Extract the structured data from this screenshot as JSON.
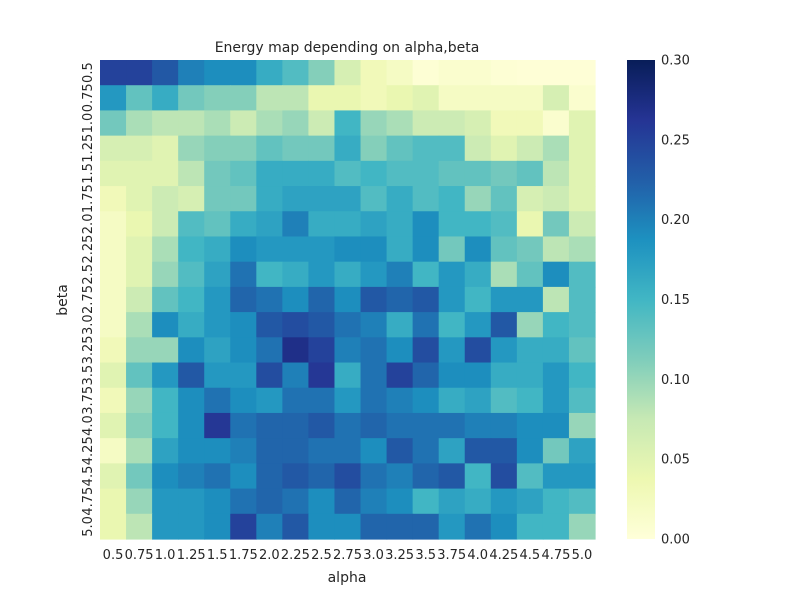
{
  "chart_data": {
    "type": "heatmap",
    "title": "Energy map depending on alpha,beta",
    "xlabel": "alpha",
    "ylabel": "beta",
    "x_tick_labels": [
      "0.5",
      "0.75",
      "1.0",
      "1.25",
      "1.5",
      "1.75",
      "2.0",
      "2.25",
      "2.5",
      "2.75",
      "3.0",
      "3.25",
      "3.5",
      "3.75",
      "4.0",
      "4.25",
      "4.5",
      "4.75",
      "5.0"
    ],
    "y_tick_labels": [
      "0.5",
      "0.75",
      "1.0",
      "1.25",
      "1.5",
      "1.75",
      "2.0",
      "2.25",
      "2.5",
      "2.75",
      "3.0",
      "3.25",
      "3.5",
      "3.75",
      "4.0",
      "4.25",
      "4.5",
      "4.75",
      "5.0"
    ],
    "colorbar": {
      "min": 0.0,
      "max": 0.3,
      "ticks": [
        "0.00",
        "0.05",
        "0.10",
        "0.15",
        "0.20",
        "0.25",
        "0.30"
      ],
      "colormap": "YlGnBu"
    },
    "values": [
      [
        0.25,
        0.25,
        0.23,
        0.2,
        0.19,
        0.19,
        0.16,
        0.14,
        0.11,
        0.06,
        0.03,
        0.02,
        0.005,
        0.01,
        0.01,
        0.005,
        0.003,
        0.003,
        0.003
      ],
      [
        0.18,
        0.13,
        0.16,
        0.12,
        0.11,
        0.11,
        0.08,
        0.08,
        0.04,
        0.04,
        0.03,
        0.04,
        0.05,
        0.02,
        0.02,
        0.02,
        0.02,
        0.06,
        0.01
      ],
      [
        0.12,
        0.09,
        0.08,
        0.08,
        0.09,
        0.07,
        0.09,
        0.1,
        0.07,
        0.15,
        0.1,
        0.09,
        0.07,
        0.07,
        0.06,
        0.03,
        0.03,
        0.01,
        0.05
      ],
      [
        0.06,
        0.06,
        0.05,
        0.1,
        0.11,
        0.11,
        0.13,
        0.12,
        0.12,
        0.16,
        0.11,
        0.13,
        0.14,
        0.14,
        0.07,
        0.05,
        0.07,
        0.09,
        0.05
      ],
      [
        0.05,
        0.05,
        0.05,
        0.08,
        0.12,
        0.13,
        0.16,
        0.16,
        0.16,
        0.14,
        0.15,
        0.14,
        0.14,
        0.13,
        0.13,
        0.12,
        0.13,
        0.08,
        0.05
      ],
      [
        0.03,
        0.05,
        0.07,
        0.06,
        0.12,
        0.12,
        0.16,
        0.17,
        0.17,
        0.17,
        0.14,
        0.16,
        0.14,
        0.15,
        0.1,
        0.13,
        0.06,
        0.07,
        0.05
      ],
      [
        0.02,
        0.04,
        0.07,
        0.14,
        0.13,
        0.16,
        0.17,
        0.2,
        0.16,
        0.16,
        0.17,
        0.16,
        0.19,
        0.15,
        0.15,
        0.14,
        0.04,
        0.12,
        0.07
      ],
      [
        0.02,
        0.05,
        0.09,
        0.15,
        0.16,
        0.19,
        0.18,
        0.18,
        0.18,
        0.19,
        0.19,
        0.16,
        0.19,
        0.12,
        0.19,
        0.13,
        0.12,
        0.08,
        0.09
      ],
      [
        0.02,
        0.05,
        0.1,
        0.14,
        0.17,
        0.21,
        0.15,
        0.16,
        0.18,
        0.16,
        0.18,
        0.2,
        0.15,
        0.18,
        0.16,
        0.09,
        0.13,
        0.19,
        0.14
      ],
      [
        0.02,
        0.07,
        0.13,
        0.15,
        0.18,
        0.22,
        0.21,
        0.19,
        0.22,
        0.19,
        0.23,
        0.22,
        0.23,
        0.18,
        0.15,
        0.18,
        0.18,
        0.08,
        0.14
      ],
      [
        0.02,
        0.09,
        0.19,
        0.16,
        0.18,
        0.19,
        0.23,
        0.24,
        0.23,
        0.21,
        0.2,
        0.16,
        0.21,
        0.15,
        0.18,
        0.23,
        0.1,
        0.15,
        0.14
      ],
      [
        0.03,
        0.1,
        0.1,
        0.19,
        0.17,
        0.19,
        0.21,
        0.27,
        0.25,
        0.2,
        0.21,
        0.19,
        0.24,
        0.18,
        0.24,
        0.18,
        0.16,
        0.16,
        0.13
      ],
      [
        0.05,
        0.13,
        0.18,
        0.23,
        0.18,
        0.18,
        0.24,
        0.2,
        0.26,
        0.16,
        0.21,
        0.25,
        0.22,
        0.19,
        0.19,
        0.16,
        0.16,
        0.18,
        0.15
      ],
      [
        0.03,
        0.1,
        0.15,
        0.19,
        0.21,
        0.19,
        0.18,
        0.21,
        0.21,
        0.18,
        0.21,
        0.2,
        0.19,
        0.16,
        0.17,
        0.14,
        0.15,
        0.18,
        0.14
      ],
      [
        0.05,
        0.11,
        0.15,
        0.19,
        0.26,
        0.21,
        0.22,
        0.22,
        0.23,
        0.21,
        0.22,
        0.21,
        0.21,
        0.21,
        0.2,
        0.2,
        0.19,
        0.19,
        0.1
      ],
      [
        0.02,
        0.09,
        0.17,
        0.19,
        0.19,
        0.2,
        0.22,
        0.22,
        0.21,
        0.21,
        0.19,
        0.23,
        0.21,
        0.17,
        0.23,
        0.23,
        0.19,
        0.12,
        0.17
      ],
      [
        0.05,
        0.12,
        0.19,
        0.2,
        0.21,
        0.19,
        0.22,
        0.23,
        0.22,
        0.24,
        0.21,
        0.2,
        0.22,
        0.23,
        0.15,
        0.24,
        0.14,
        0.18,
        0.18
      ],
      [
        0.04,
        0.1,
        0.18,
        0.18,
        0.19,
        0.21,
        0.22,
        0.21,
        0.19,
        0.22,
        0.2,
        0.19,
        0.15,
        0.17,
        0.16,
        0.18,
        0.17,
        0.15,
        0.14
      ],
      [
        0.04,
        0.08,
        0.18,
        0.18,
        0.19,
        0.25,
        0.2,
        0.23,
        0.19,
        0.19,
        0.22,
        0.22,
        0.22,
        0.18,
        0.21,
        0.19,
        0.15,
        0.15,
        0.1
      ]
    ]
  }
}
